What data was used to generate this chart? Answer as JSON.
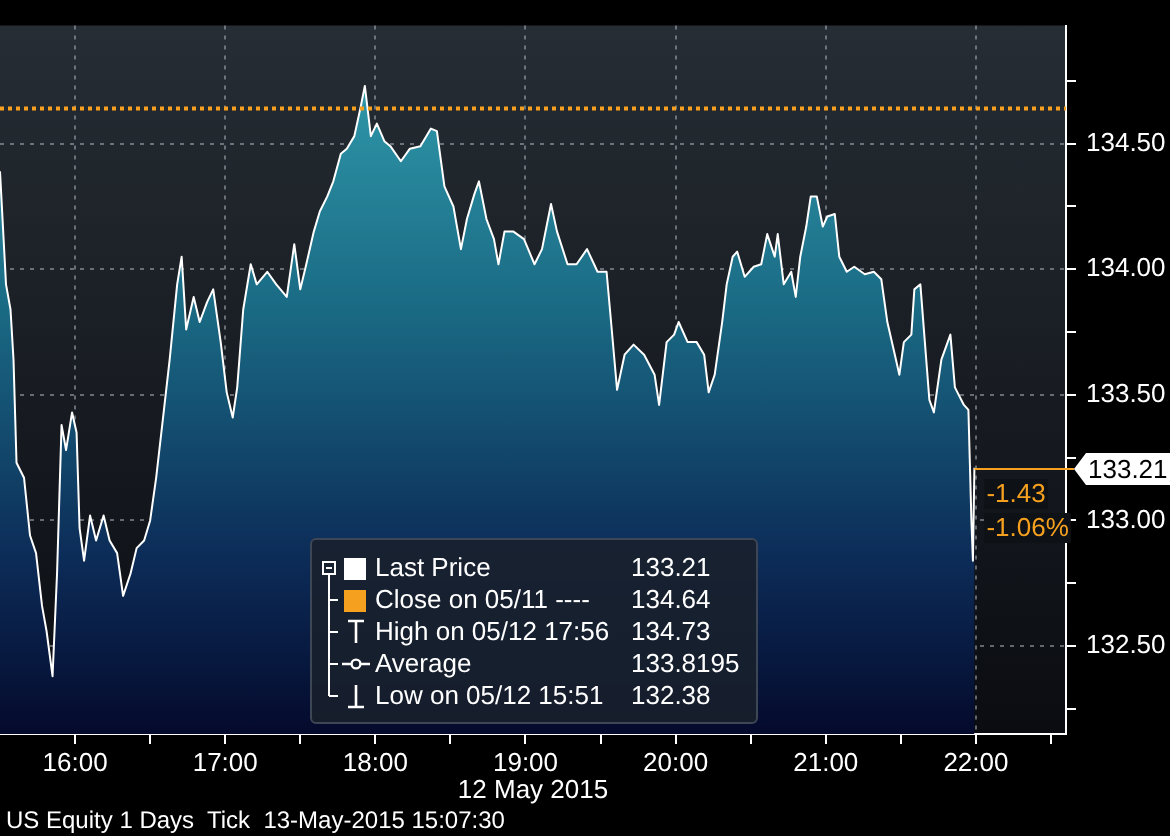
{
  "chart_data": {
    "type": "area",
    "xlabel": "12 May 2015",
    "x": [
      15.5,
      15.54,
      15.57,
      15.59,
      15.61,
      15.66,
      15.7,
      15.74,
      15.78,
      15.81,
      15.85,
      15.88,
      15.91,
      15.94,
      15.98,
      16.01,
      16.03,
      16.06,
      16.1,
      16.14,
      16.19,
      16.23,
      16.28,
      16.32,
      16.37,
      16.41,
      16.46,
      16.5,
      16.54,
      16.59,
      16.63,
      16.68,
      16.71,
      16.74,
      16.79,
      16.83,
      16.88,
      16.92,
      16.97,
      17.01,
      17.05,
      17.08,
      17.12,
      17.17,
      17.21,
      17.28,
      17.34,
      17.41,
      17.46,
      17.5,
      17.54,
      17.59,
      17.63,
      17.68,
      17.72,
      17.77,
      17.81,
      17.86,
      17.9,
      17.93,
      17.97,
      18.01,
      18.06,
      18.1,
      18.17,
      18.23,
      18.3,
      18.37,
      18.41,
      18.46,
      18.52,
      18.57,
      18.61,
      18.66,
      18.69,
      18.74,
      18.79,
      18.82,
      18.86,
      18.92,
      18.99,
      19.06,
      19.11,
      19.17,
      19.21,
      19.28,
      19.34,
      19.41,
      19.48,
      19.54,
      19.57,
      19.61,
      19.66,
      19.72,
      19.79,
      19.86,
      19.89,
      19.94,
      19.99,
      20.02,
      20.08,
      20.14,
      20.19,
      20.22,
      20.26,
      20.31,
      20.34,
      20.38,
      20.41,
      20.46,
      20.52,
      20.57,
      20.61,
      20.66,
      20.68,
      20.72,
      20.77,
      20.8,
      20.83,
      20.87,
      20.9,
      20.94,
      20.98,
      21.01,
      21.06,
      21.09,
      21.14,
      21.19,
      21.26,
      21.32,
      21.37,
      21.41,
      21.46,
      21.49,
      21.52,
      21.57,
      21.59,
      21.63,
      21.66,
      21.69,
      21.72,
      21.77,
      21.8,
      21.83,
      21.86,
      21.92,
      21.95,
      21.97,
      21.98,
      21.99
    ],
    "series": [
      {
        "name": "Last Price",
        "color": "#ffffff",
        "values": [
          134.39,
          133.94,
          133.84,
          133.64,
          133.23,
          133.17,
          132.94,
          132.87,
          132.66,
          132.56,
          132.38,
          132.79,
          133.38,
          133.28,
          133.43,
          133.35,
          132.97,
          132.84,
          133.02,
          132.92,
          133.02,
          132.92,
          132.87,
          132.7,
          132.79,
          132.89,
          132.92,
          133.0,
          133.17,
          133.43,
          133.64,
          133.94,
          134.05,
          133.76,
          133.89,
          133.79,
          133.87,
          133.92,
          133.71,
          133.51,
          133.41,
          133.53,
          133.84,
          134.02,
          133.94,
          133.99,
          133.94,
          133.89,
          134.1,
          133.92,
          134.02,
          134.15,
          134.23,
          134.29,
          134.35,
          134.46,
          134.48,
          134.53,
          134.64,
          134.73,
          134.53,
          134.58,
          134.51,
          134.49,
          134.43,
          134.48,
          134.49,
          134.56,
          134.55,
          134.33,
          134.25,
          134.08,
          134.2,
          134.3,
          134.35,
          134.2,
          134.12,
          134.02,
          134.15,
          134.15,
          134.12,
          134.02,
          134.08,
          134.26,
          134.15,
          134.02,
          134.02,
          134.08,
          133.99,
          133.99,
          133.79,
          133.52,
          133.66,
          133.7,
          133.66,
          133.58,
          133.46,
          133.71,
          133.74,
          133.79,
          133.71,
          133.71,
          133.66,
          133.51,
          133.58,
          133.79,
          133.94,
          134.05,
          134.07,
          133.97,
          134.01,
          134.02,
          134.14,
          134.05,
          134.14,
          133.94,
          133.99,
          133.89,
          134.05,
          134.17,
          134.29,
          134.29,
          134.17,
          134.21,
          134.22,
          134.05,
          133.99,
          134.01,
          133.98,
          133.99,
          133.96,
          133.79,
          133.66,
          133.58,
          133.71,
          133.74,
          133.92,
          133.94,
          133.71,
          133.48,
          133.43,
          133.64,
          133.69,
          133.74,
          133.53,
          133.46,
          133.44,
          133.0,
          132.84,
          133.21
        ]
      }
    ],
    "xlim": [
      15.5,
      22.6
    ],
    "xticks": [
      {
        "value": 16,
        "label": "16:00"
      },
      {
        "value": 16.5,
        "label": null
      },
      {
        "value": 17,
        "label": "17:00"
      },
      {
        "value": 17.5,
        "label": null
      },
      {
        "value": 18,
        "label": "18:00"
      },
      {
        "value": 18.5,
        "label": null
      },
      {
        "value": 19,
        "label": "19:00"
      },
      {
        "value": 19.5,
        "label": null
      },
      {
        "value": 20,
        "label": "20:00"
      },
      {
        "value": 20.5,
        "label": null
      },
      {
        "value": 21,
        "label": "21:00"
      },
      {
        "value": 21.5,
        "label": null
      },
      {
        "value": 22,
        "label": "22:00"
      },
      {
        "value": 22.5,
        "label": null
      }
    ],
    "ylim": [
      132.15,
      134.97
    ],
    "yticks": [
      {
        "value": 132.25,
        "label": null
      },
      {
        "value": 132.5,
        "label": "132.50"
      },
      {
        "value": 132.75,
        "label": null
      },
      {
        "value": 133,
        "label": "133.00"
      },
      {
        "value": 133.25,
        "label": null
      },
      {
        "value": 133.5,
        "label": "133.50"
      },
      {
        "value": 133.75,
        "label": null
      },
      {
        "value": 134,
        "label": "134.00"
      },
      {
        "value": 134.25,
        "label": null
      },
      {
        "value": 134.5,
        "label": "134.50"
      },
      {
        "value": 134.75,
        "label": null
      }
    ],
    "grid": true,
    "legend": "bottom",
    "ref_lines": [
      {
        "axis": "y",
        "value": 134.64,
        "label": "Close on 05/11 ----",
        "color": "#f5a01e",
        "line_style": "dotted"
      }
    ],
    "annotations": [
      "133.21",
      "-1.43",
      "-1.06%",
      "133.21",
      "134.64",
      "High on 05/12 17:56",
      "134.73",
      "Average",
      "133.8195",
      "Low on 05/12 15:51",
      "132.38",
      "US Equity 1 Days  Tick  13-May-2015 15:07:30"
    ]
  }
}
